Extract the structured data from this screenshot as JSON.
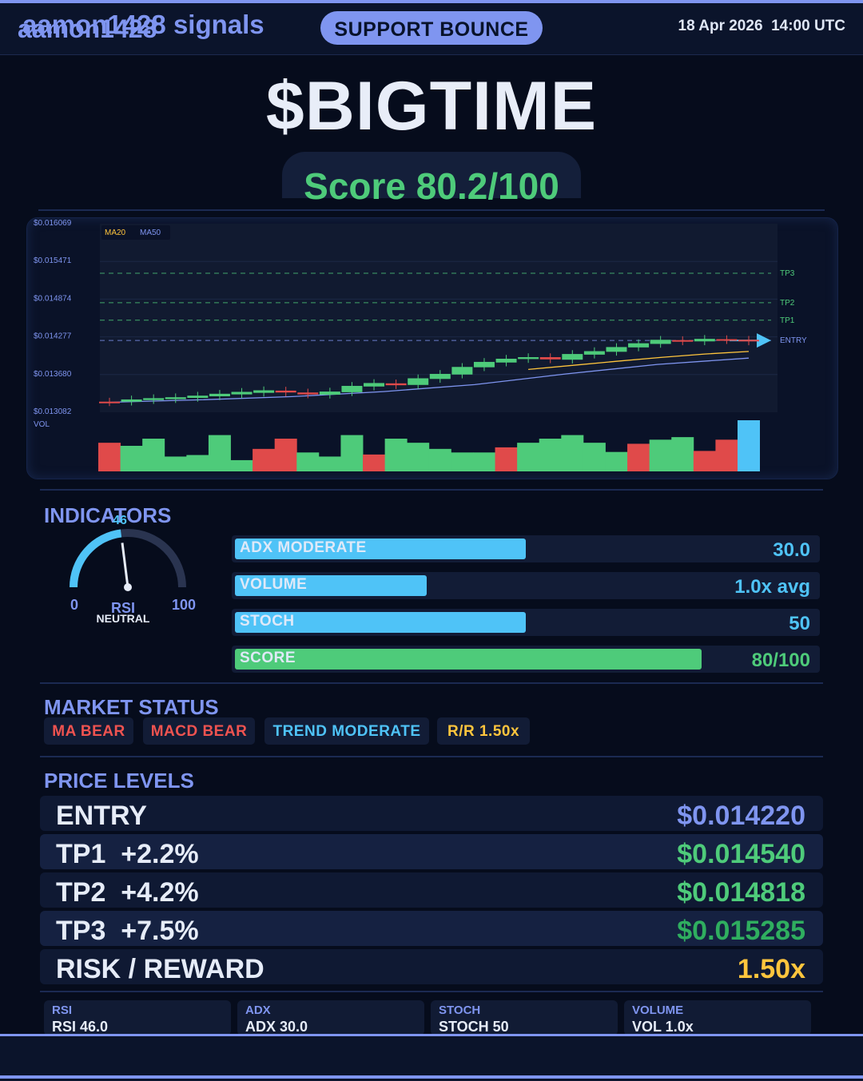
{
  "header": {
    "brand": "aamon1428",
    "signal": "SUPPORT BOUNCE",
    "timestamp": "18 Apr 2026  14:00 UTC"
  },
  "ticker": "$BIGTIME",
  "score": "Score 80.2/100",
  "chart_data": {
    "type": "candlestick",
    "y_ticks": [
      "$0.016069",
      "$0.015471",
      "$0.014874",
      "$0.014277",
      "$0.013680",
      "$0.013082"
    ],
    "ylim": [
      0.013082,
      0.016069
    ],
    "legend": [
      "MA20",
      "MA50"
    ],
    "volume_label": "VOL",
    "levels": [
      {
        "name": "TP3",
        "value": 0.015285
      },
      {
        "name": "TP2",
        "value": 0.014818
      },
      {
        "name": "TP1",
        "value": 0.01454
      },
      {
        "name": "ENTRY",
        "value": 0.01422
      }
    ],
    "candles": [
      {
        "o": 0.01325,
        "c": 0.01324
      },
      {
        "o": 0.01325,
        "c": 0.013285
      },
      {
        "o": 0.013275,
        "c": 0.013305
      },
      {
        "o": 0.01329,
        "c": 0.01332
      },
      {
        "o": 0.01331,
        "c": 0.013345
      },
      {
        "o": 0.013335,
        "c": 0.013375
      },
      {
        "o": 0.013365,
        "c": 0.013405
      },
      {
        "o": 0.01339,
        "c": 0.01343
      },
      {
        "o": 0.013425,
        "c": 0.013395
      },
      {
        "o": 0.013395,
        "c": 0.013365
      },
      {
        "o": 0.01336,
        "c": 0.01341
      },
      {
        "o": 0.0134,
        "c": 0.0135
      },
      {
        "o": 0.01349,
        "c": 0.013545
      },
      {
        "o": 0.01354,
        "c": 0.01351
      },
      {
        "o": 0.013515,
        "c": 0.01362
      },
      {
        "o": 0.01361,
        "c": 0.01369
      },
      {
        "o": 0.01368,
        "c": 0.0138
      },
      {
        "o": 0.013795,
        "c": 0.01388
      },
      {
        "o": 0.01387,
        "c": 0.01393
      },
      {
        "o": 0.013925,
        "c": 0.013955
      },
      {
        "o": 0.013955,
        "c": 0.01392
      },
      {
        "o": 0.013915,
        "c": 0.014005
      },
      {
        "o": 0.013995,
        "c": 0.01405
      },
      {
        "o": 0.01404,
        "c": 0.014115
      },
      {
        "o": 0.01411,
        "c": 0.014175
      },
      {
        "o": 0.014165,
        "c": 0.01423
      },
      {
        "o": 0.014225,
        "c": 0.014205
      },
      {
        "o": 0.014205,
        "c": 0.014245
      },
      {
        "o": 0.01424,
        "c": 0.014225
      },
      {
        "o": 0.01423,
        "c": 0.014205
      }
    ],
    "ma20": [
      0.01376,
      0.013825,
      0.01389,
      0.01395,
      0.014005,
      0.014045
    ],
    "ma50": [
      0.01324,
      0.01328,
      0.01333,
      0.01341,
      0.01352,
      0.01369,
      0.01384,
      0.01394
    ],
    "volume": [
      {
        "v": 0.56,
        "up": false
      },
      {
        "v": 0.5,
        "up": true
      },
      {
        "v": 0.64,
        "up": true
      },
      {
        "v": 0.29,
        "up": true
      },
      {
        "v": 0.32,
        "up": true
      },
      {
        "v": 0.71,
        "up": true
      },
      {
        "v": 0.22,
        "up": true
      },
      {
        "v": 0.44,
        "up": false
      },
      {
        "v": 0.64,
        "up": false
      },
      {
        "v": 0.37,
        "up": true
      },
      {
        "v": 0.29,
        "up": true
      },
      {
        "v": 0.71,
        "up": true
      },
      {
        "v": 0.33,
        "up": false
      },
      {
        "v": 0.64,
        "up": true
      },
      {
        "v": 0.56,
        "up": true
      },
      {
        "v": 0.44,
        "up": true
      },
      {
        "v": 0.37,
        "up": true
      },
      {
        "v": 0.37,
        "up": true
      },
      {
        "v": 0.47,
        "up": false
      },
      {
        "v": 0.56,
        "up": true
      },
      {
        "v": 0.64,
        "up": true
      },
      {
        "v": 0.71,
        "up": true
      },
      {
        "v": 0.56,
        "up": true
      },
      {
        "v": 0.38,
        "up": true
      },
      {
        "v": 0.54,
        "up": false
      },
      {
        "v": 0.62,
        "up": true
      },
      {
        "v": 0.67,
        "up": true
      },
      {
        "v": 0.4,
        "up": false
      },
      {
        "v": 0.62,
        "up": false
      },
      {
        "v": 1.0,
        "current": true
      }
    ]
  },
  "indicators": {
    "title": "INDICATORS",
    "rsi": {
      "value": 46,
      "value_label": "46",
      "min": "0",
      "max": "100",
      "label": "RSI",
      "status": "NEUTRAL"
    },
    "bars": [
      {
        "label": "ADX  MODERATE",
        "value": "30.0",
        "fill": 0.5,
        "color": "#4fc3f7",
        "value_color": "#4fc3f7"
      },
      {
        "label": "VOLUME",
        "value": "1.0x avg",
        "fill": 0.33,
        "color": "#4fc3f7",
        "value_color": "#4fc3f7"
      },
      {
        "label": "STOCH",
        "value": "50",
        "fill": 0.5,
        "color": "#4fc3f7",
        "value_color": "#4fc3f7"
      },
      {
        "label": "SCORE",
        "value": "80/100",
        "fill": 0.802,
        "color": "#4ecb7a",
        "value_color": "#4ecb7a"
      }
    ]
  },
  "market_status": {
    "title": "MARKET STATUS",
    "chips": [
      {
        "label": "MA BEAR",
        "color": "#ef5350"
      },
      {
        "label": "MACD BEAR",
        "color": "#ef5350"
      },
      {
        "label": "TREND MODERATE",
        "color": "#4fc3f7"
      },
      {
        "label": "R/R  1.50x",
        "color": "#ffc53d"
      }
    ]
  },
  "price_levels": {
    "title": "PRICE LEVELS",
    "rows": [
      {
        "name": "ENTRY",
        "price": "$0.014220",
        "color": "#7f95f0"
      },
      {
        "name": "TP1  +2.2%",
        "price": "$0.014540",
        "color": "#4ecb7a"
      },
      {
        "name": "TP2  +4.2%",
        "price": "$0.014818",
        "color": "#4ecb7a"
      },
      {
        "name": "TP3  +7.5%",
        "price": "$0.015285",
        "color": "#2fae5f"
      },
      {
        "name": "RISK / REWARD",
        "price": "1.50x",
        "color": "#ffc53d"
      }
    ]
  },
  "mini_cards": [
    {
      "key": "RSI",
      "value": "RSI 46.0"
    },
    {
      "key": "ADX",
      "value": "ADX 30.0"
    },
    {
      "key": "STOCH",
      "value": "STOCH 50"
    },
    {
      "key": "VOLUME",
      "value": "VOL 1.0x"
    }
  ],
  "footer": "aamon1428 signals",
  "colors": {
    "accent": "#7f95f0",
    "bull": "#4ecb7a",
    "bear": "#e04a4a",
    "cyan": "#4fc3f7",
    "gold": "#ffc53d"
  }
}
